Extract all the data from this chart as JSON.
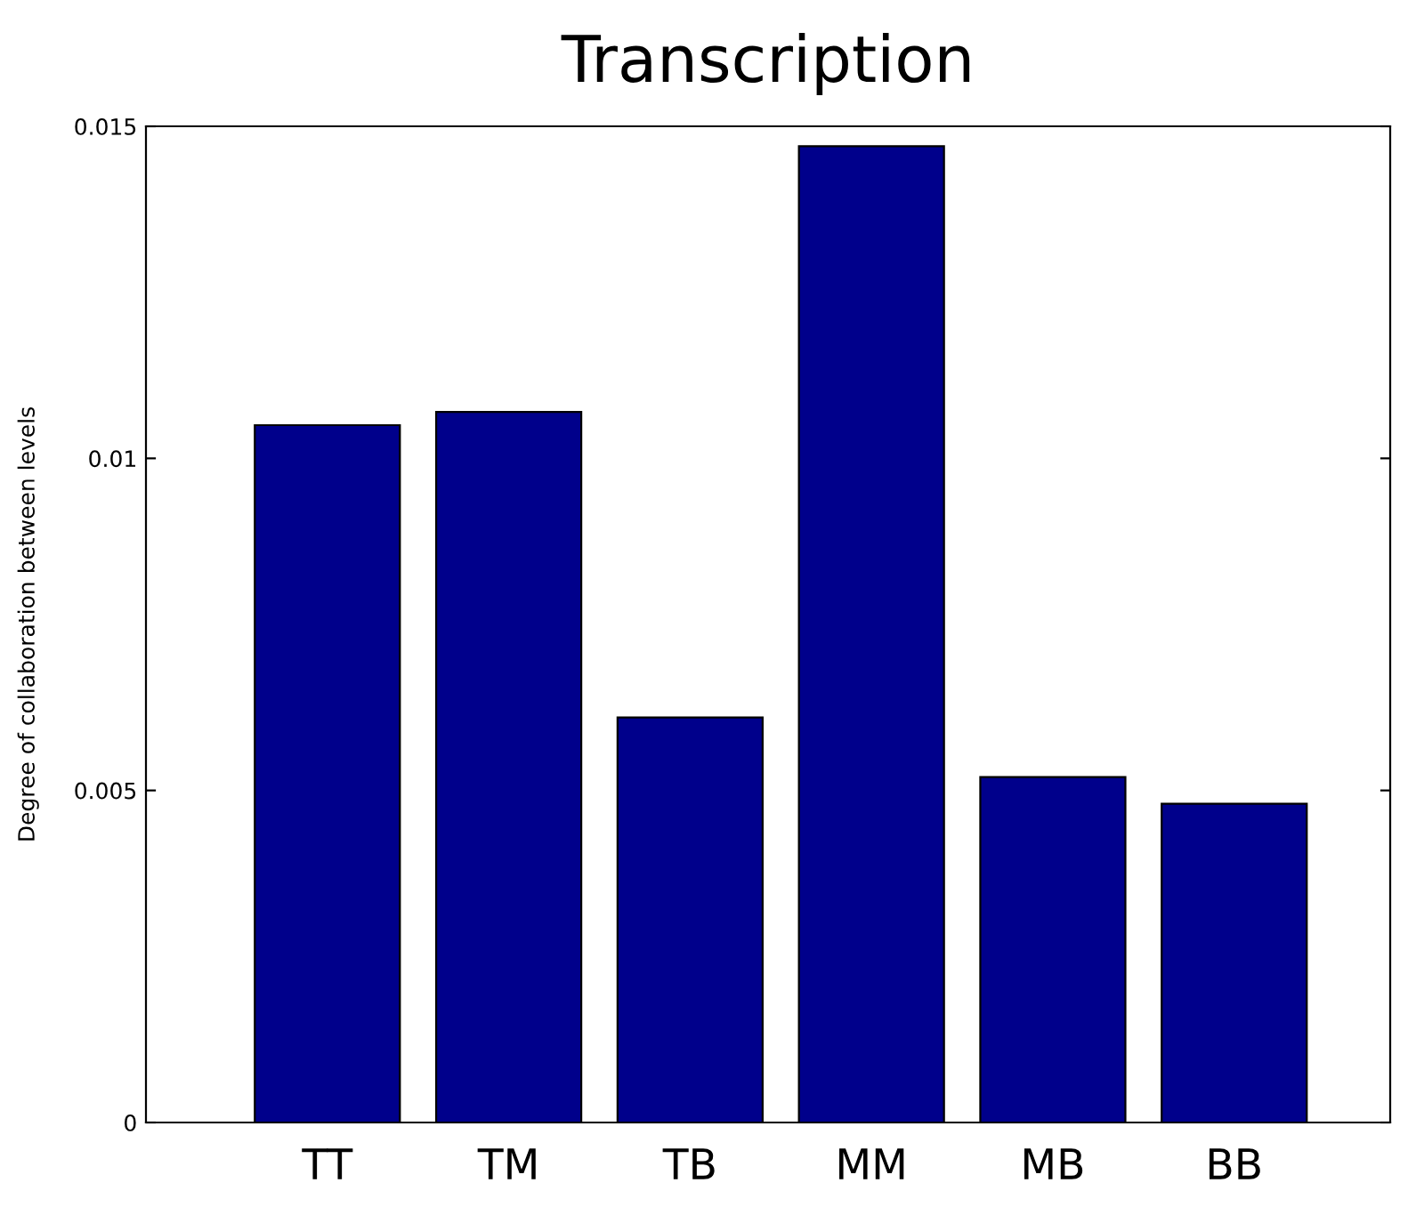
{
  "chart_data": {
    "type": "bar",
    "title": "Transcription",
    "ylabel": "Degree of collaboration between levels",
    "categories": [
      "TT",
      "TM",
      "TB",
      "MM",
      "MB",
      "BB"
    ],
    "values": [
      0.0105,
      0.0107,
      0.0061,
      0.0147,
      0.0052,
      0.0048
    ],
    "color": "#00008b",
    "ylim": [
      0,
      0.015
    ],
    "yticks": [
      0,
      {
        "value": 0.005,
        "label": "0.005"
      },
      {
        "value": 0.01,
        "label": "0.01"
      },
      {
        "value": 0.015,
        "label": "0.015"
      }
    ],
    "grid": false
  }
}
